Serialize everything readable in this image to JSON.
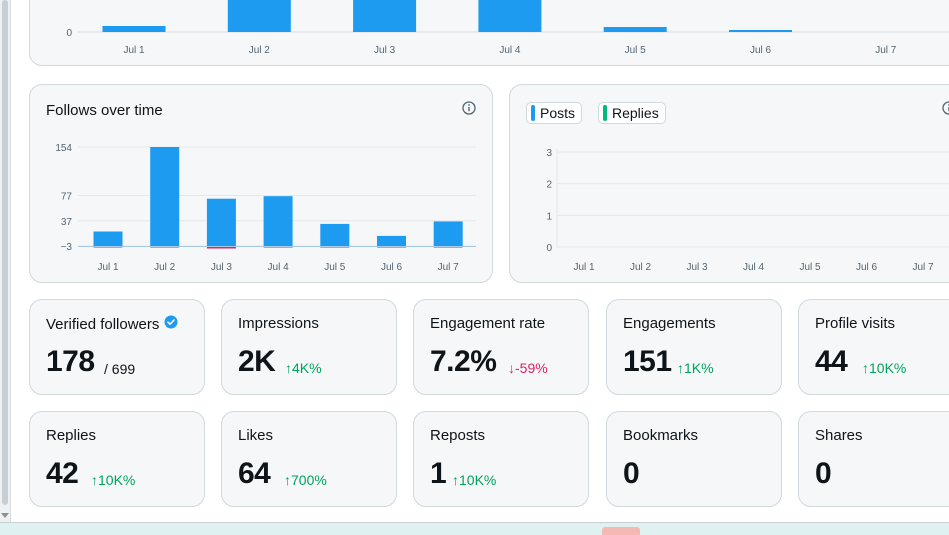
{
  "top_chart": {
    "x_labels": [
      "Jul 1",
      "Jul 2",
      "Jul 3",
      "Jul 4",
      "Jul 5",
      "Jul 6",
      "Jul 7"
    ],
    "zero_label": "0"
  },
  "follows_card": {
    "title": "Follows over time",
    "info_icon": "info-icon"
  },
  "posts_card": {
    "legend": [
      {
        "label": "Posts",
        "color": "#1d9bf0"
      },
      {
        "label": "Replies",
        "color": "#00ba7c"
      }
    ],
    "info_icon": "info-icon"
  },
  "chart_data": [
    {
      "type": "bar",
      "title": "",
      "categories": [
        "Jul 1",
        "Jul 2",
        "Jul 3",
        "Jul 4",
        "Jul 5",
        "Jul 6",
        "Jul 7"
      ],
      "series": [
        {
          "values": [
            12,
            80,
            70,
            64,
            10,
            1,
            0
          ],
          "color": "#1d9bf0"
        }
      ],
      "y_ticks": [
        "0"
      ],
      "note_visible": "top of chart cropped; only 0 tick visible",
      "grid": true
    },
    {
      "type": "bar",
      "title": "Follows over time",
      "categories": [
        "Jul 1",
        "Jul 2",
        "Jul 3",
        "Jul 4",
        "Jul 5",
        "Jul 6",
        "Jul 7"
      ],
      "series": [
        {
          "values": [
            20,
            154,
            72,
            76,
            32,
            13,
            36
          ],
          "color": "#1d9bf0"
        },
        {
          "values": [
            -3,
            -3,
            -5,
            -3,
            -2,
            -3,
            -1
          ],
          "color": "#e0245e"
        }
      ],
      "y_ticks": [
        -3,
        37,
        77,
        154
      ],
      "y_tick_labels": [
        "−3",
        "37",
        "77",
        "154"
      ],
      "ylim": [
        -10,
        165
      ],
      "grid": true
    },
    {
      "type": "line",
      "title": "",
      "categories": [
        "Jul 1",
        "Jul 2",
        "Jul 3",
        "Jul 4",
        "Jul 5",
        "Jul 6",
        "Jul 7"
      ],
      "series": [
        {
          "name": "Posts",
          "values": [
            0,
            0,
            0,
            0,
            0,
            0,
            0
          ],
          "color": "#1d9bf0"
        },
        {
          "name": "Replies",
          "values": [
            0,
            0,
            0,
            0,
            0,
            0,
            0
          ],
          "color": "#00ba7c"
        }
      ],
      "y_ticks": [
        0,
        1,
        2,
        3
      ],
      "ylim": [
        0,
        3
      ],
      "grid": true,
      "legend": "top-left"
    }
  ],
  "stats": {
    "verified_followers": {
      "label": "Verified followers",
      "value": "178",
      "sub": "/ 699"
    },
    "impressions": {
      "label": "Impressions",
      "value": "2K",
      "delta": "↑4K%"
    },
    "engagement_rate": {
      "label": "Engagement rate",
      "value": "7.2%",
      "delta": "↓-59%"
    },
    "engagements": {
      "label": "Engagements",
      "value": "151",
      "delta": "↑1K%"
    },
    "profile_visits": {
      "label": "Profile visits",
      "value": "44",
      "delta": "↑10K%"
    },
    "replies": {
      "label": "Replies",
      "value": "42",
      "delta": "↑10K%"
    },
    "likes": {
      "label": "Likes",
      "value": "64",
      "delta": "↑700%"
    },
    "reposts": {
      "label": "Reposts",
      "value": "1",
      "delta": "↑10K%"
    },
    "bookmarks": {
      "label": "Bookmarks",
      "value": "0"
    },
    "shares": {
      "label": "Shares",
      "value": "0"
    }
  },
  "colors": {
    "accent": "#1d9bf0",
    "positive": "#00a35c",
    "negative": "#e0245e",
    "card_bg": "#f5f7f8",
    "border": "#cfd9de"
  }
}
